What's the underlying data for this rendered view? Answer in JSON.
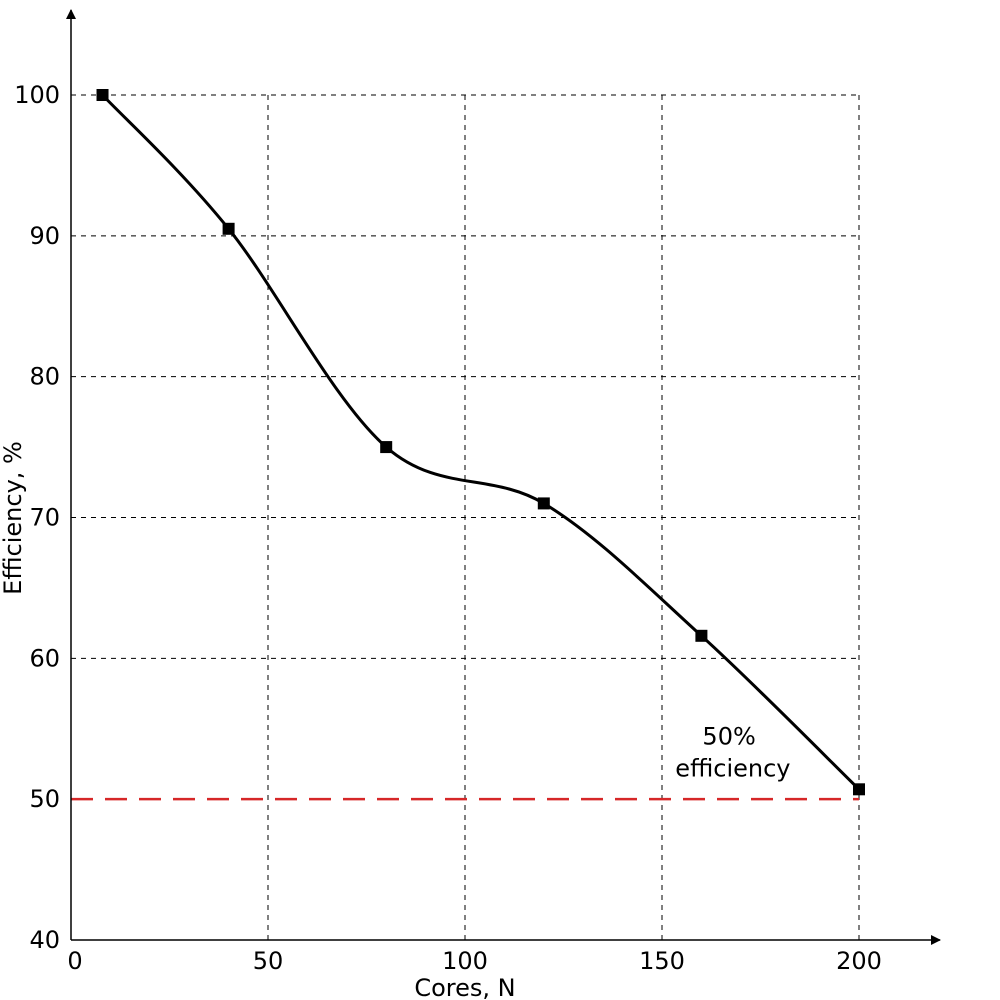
{
  "chart_data": {
    "type": "line",
    "title": "",
    "xlabel": "Cores, N",
    "ylabel": "Efficiency, %",
    "xlim": [
      0,
      200
    ],
    "ylim": [
      40,
      100
    ],
    "xticks": [
      "0",
      "50",
      "100",
      "150",
      "200"
    ],
    "yticks": [
      "40",
      "50",
      "60",
      "70",
      "80",
      "90",
      "100"
    ],
    "grid": true,
    "series": [
      {
        "x": [
          8,
          40,
          80,
          120,
          160,
          200
        ],
        "y": [
          100,
          90.5,
          75,
          71,
          61.6,
          50.7
        ],
        "marker": "square",
        "smooth": true,
        "color": "#000000"
      }
    ],
    "reference_line": {
      "y": 50,
      "color": "#d62728",
      "style": "dashed"
    },
    "annotation": {
      "lines": [
        "50%",
        "efficiency"
      ],
      "x": 168,
      "y": 51.6
    }
  }
}
